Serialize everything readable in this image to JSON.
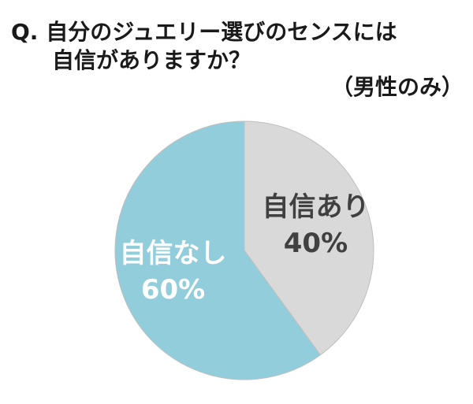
{
  "chart_data": {
    "type": "pie",
    "title": [
      "Q. 自分のジュエリー選びのセンスには",
      "自信がありますか？"
    ],
    "subtitle": "（男性のみ）",
    "categories": [
      "自信あり",
      "自信なし"
    ],
    "values": [
      40,
      60
    ],
    "value_labels": [
      "40%",
      "60%"
    ],
    "colors": [
      "#d9d9d9",
      "#92cddc"
    ],
    "label_colors": [
      "#404040",
      "#ffffff"
    ]
  }
}
